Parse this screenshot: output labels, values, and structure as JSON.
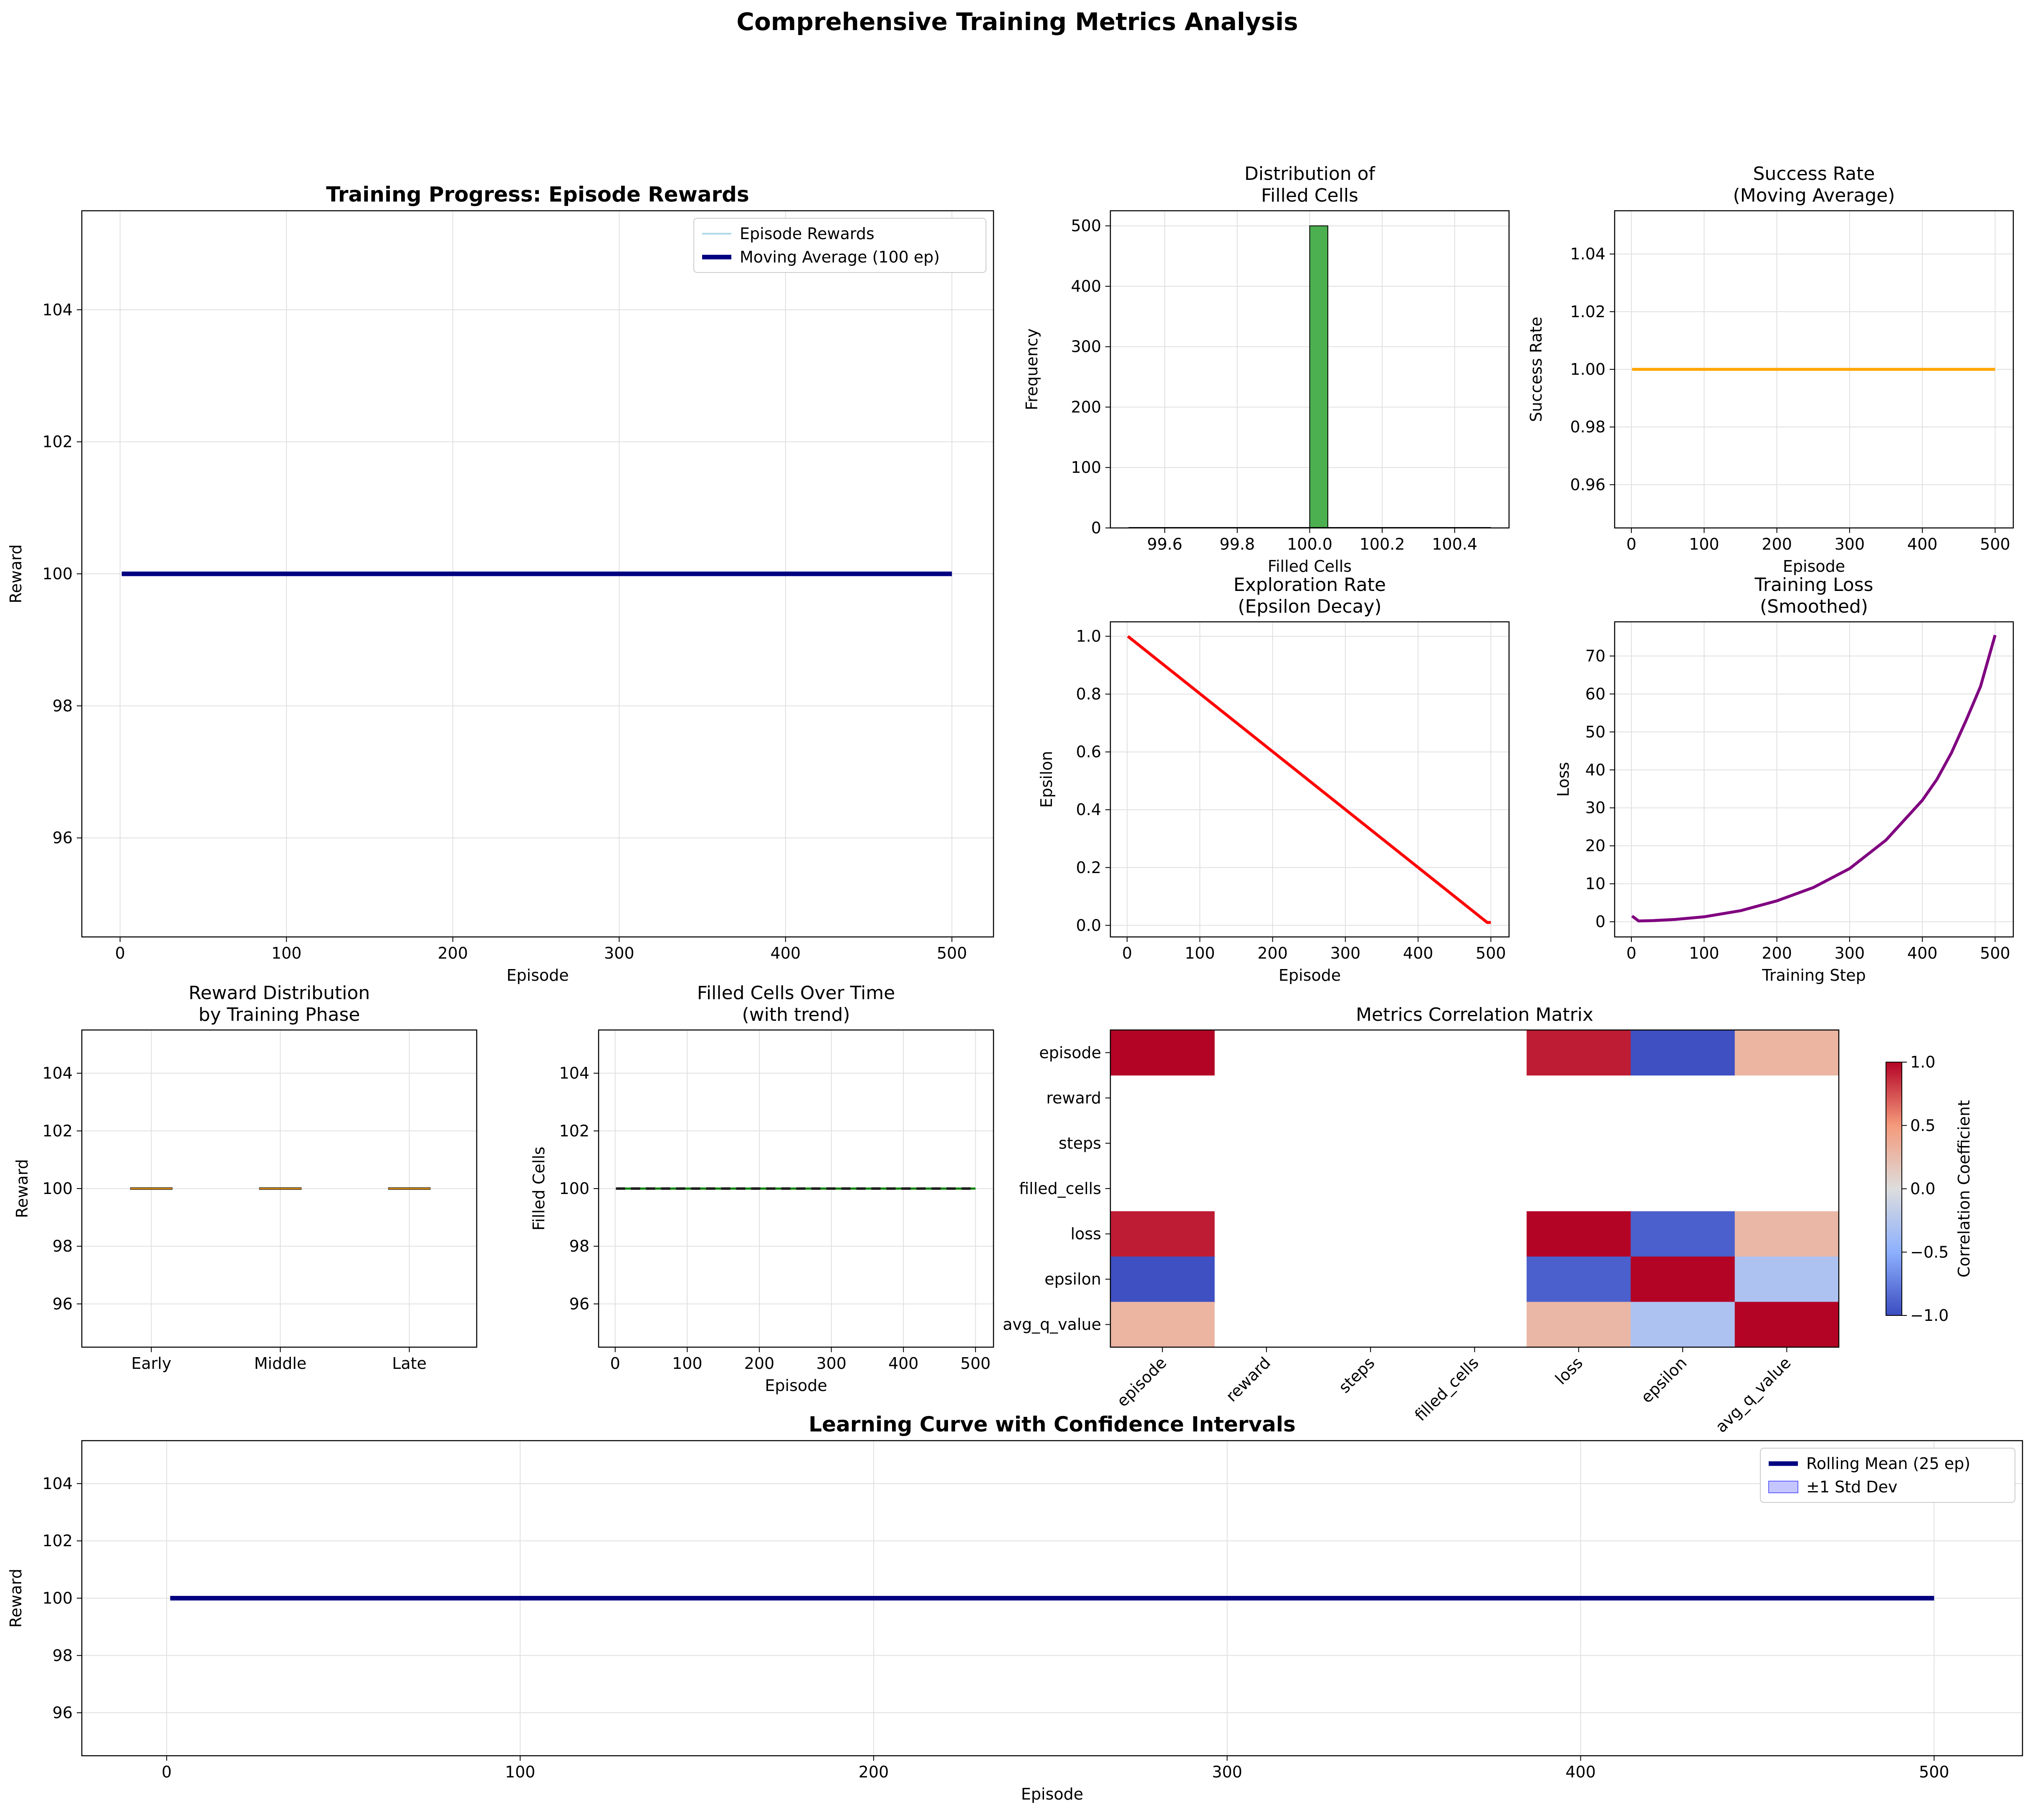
{
  "figure": {
    "suptitle": "Comprehensive Training Metrics Analysis"
  },
  "colors": {
    "episode_rewards": "#add8e6",
    "moving_average": "#000080",
    "histogram": "#4caf50",
    "success_rate": "#ffa500",
    "epsilon": "#ff0000",
    "loss": "#800080",
    "filled_over_time": "#008000",
    "box_median": "#e69500",
    "rolling_mean": "#000080",
    "std_band": "#a0a0ff"
  },
  "chart_data": [
    {
      "id": "rewards",
      "type": "line",
      "title": "Training Progress: Episode Rewards",
      "xlabel": "Episode",
      "ylabel": "Reward",
      "xlim": [
        -23,
        525
      ],
      "ylim": [
        94.5,
        105.5
      ],
      "xticks": [
        0,
        100,
        200,
        300,
        400,
        500
      ],
      "yticks": [
        96,
        98,
        100,
        102,
        104
      ],
      "grid": true,
      "legend": "upper right",
      "series": [
        {
          "name": "Episode Rewards",
          "x": [
            1,
            500
          ],
          "y": [
            100,
            100
          ]
        },
        {
          "name": "Moving Average (100 ep)",
          "x": [
            1,
            500
          ],
          "y": [
            100,
            100
          ]
        }
      ]
    },
    {
      "id": "filled_hist",
      "type": "bar",
      "title": "Distribution of\nFilled Cells",
      "xlabel": "Filled Cells",
      "ylabel": "Frequency",
      "xlim": [
        99.45,
        100.55
      ],
      "ylim": [
        0,
        525
      ],
      "xticks": [
        99.6,
        99.8,
        100.0,
        100.2,
        100.4
      ],
      "yticks": [
        0,
        100,
        200,
        300,
        400,
        500
      ],
      "grid": true,
      "bins": [
        {
          "x0": 100.0,
          "x1": 100.05,
          "count": 500
        }
      ]
    },
    {
      "id": "success",
      "type": "line",
      "title": "Success Rate\n(Moving Average)",
      "xlabel": "Episode",
      "ylabel": "Success Rate",
      "xlim": [
        -23,
        525
      ],
      "ylim": [
        0.945,
        1.055
      ],
      "xticks": [
        0,
        100,
        200,
        300,
        400,
        500
      ],
      "yticks": [
        0.96,
        0.98,
        1.0,
        1.02,
        1.04
      ],
      "grid": true,
      "series": [
        {
          "x": [
            1,
            500
          ],
          "y": [
            1.0,
            1.0
          ]
        }
      ]
    },
    {
      "id": "epsilon",
      "type": "line",
      "title": "Exploration Rate\n(Epsilon Decay)",
      "xlabel": "Episode",
      "ylabel": "Epsilon",
      "xlim": [
        -23,
        525
      ],
      "ylim": [
        -0.04,
        1.05
      ],
      "xticks": [
        0,
        100,
        200,
        300,
        400,
        500
      ],
      "yticks": [
        0.0,
        0.2,
        0.4,
        0.6,
        0.8,
        1.0
      ],
      "grid": true,
      "series": [
        {
          "x": [
            1,
            495,
            500
          ],
          "y": [
            1.0,
            0.01,
            0.01
          ]
        }
      ]
    },
    {
      "id": "loss",
      "type": "line",
      "title": "Training Loss\n(Smoothed)",
      "xlabel": "Training Step",
      "ylabel": "Loss",
      "xlim": [
        -23,
        525
      ],
      "ylim": [
        -4,
        79
      ],
      "xticks": [
        0,
        100,
        200,
        300,
        400,
        500
      ],
      "yticks": [
        0,
        10,
        20,
        30,
        40,
        50,
        60,
        70
      ],
      "grid": true,
      "series": [
        {
          "x": [
            1,
            10,
            30,
            60,
            100,
            150,
            200,
            250,
            300,
            350,
            400,
            420,
            440,
            460,
            480,
            500
          ],
          "y": [
            1.5,
            0.2,
            0.3,
            0.6,
            1.3,
            2.9,
            5.5,
            9.0,
            14.0,
            21.5,
            32.0,
            37.5,
            44.5,
            53.0,
            62.0,
            75.5
          ]
        }
      ]
    },
    {
      "id": "box",
      "type": "box",
      "title": "Reward Distribution\nby Training Phase",
      "ylabel": "Reward",
      "categories": [
        "Early",
        "Middle",
        "Late"
      ],
      "ylim": [
        94.5,
        105.5
      ],
      "yticks": [
        96,
        98,
        100,
        102,
        104
      ],
      "grid": true,
      "boxes": [
        {
          "q1": 100,
          "median": 100,
          "q3": 100
        },
        {
          "q1": 100,
          "median": 100,
          "q3": 100
        },
        {
          "q1": 100,
          "median": 100,
          "q3": 100
        }
      ]
    },
    {
      "id": "filled_time",
      "type": "line",
      "title": "Filled Cells Over Time\n(with trend)",
      "xlabel": "Episode",
      "ylabel": "Filled Cells",
      "xlim": [
        -23,
        525
      ],
      "ylim": [
        94.5,
        105.5
      ],
      "xticks": [
        0,
        100,
        200,
        300,
        400,
        500
      ],
      "yticks": [
        96,
        98,
        100,
        102,
        104
      ],
      "grid": true,
      "series": [
        {
          "x": [
            1,
            500
          ],
          "y": [
            100,
            100
          ]
        },
        {
          "x": [
            1,
            500
          ],
          "y": [
            100,
            100
          ],
          "style": "dashed"
        }
      ]
    },
    {
      "id": "corr",
      "type": "heatmap",
      "title": "Metrics Correlation Matrix",
      "labels": [
        "episode",
        "reward",
        "steps",
        "filled_cells",
        "loss",
        "epsilon",
        "avg_q_value"
      ],
      "colorbar_label": "Correlation Coefficient",
      "colorbar_range": [
        -1,
        1
      ],
      "colorbar_ticks": [
        -1.0,
        -0.5,
        0.0,
        0.5,
        1.0
      ],
      "matrix": [
        [
          1.0,
          null,
          null,
          null,
          0.92,
          -0.98,
          0.3
        ],
        [
          null,
          null,
          null,
          null,
          null,
          null,
          null
        ],
        [
          null,
          null,
          null,
          null,
          null,
          null,
          null
        ],
        [
          null,
          null,
          null,
          null,
          null,
          null,
          null
        ],
        [
          0.92,
          null,
          null,
          null,
          1.0,
          -0.9,
          0.28
        ],
        [
          -0.98,
          null,
          null,
          null,
          -0.9,
          1.0,
          -0.3
        ],
        [
          0.3,
          null,
          null,
          null,
          0.28,
          -0.3,
          1.0
        ]
      ]
    },
    {
      "id": "learning",
      "type": "line",
      "title": "Learning Curve with Confidence Intervals",
      "xlabel": "Episode",
      "ylabel": "Reward",
      "xlim": [
        -24,
        525
      ],
      "ylim": [
        94.5,
        105.5
      ],
      "xticks": [
        0,
        100,
        200,
        300,
        400,
        500
      ],
      "yticks": [
        96,
        98,
        100,
        102,
        104
      ],
      "grid": true,
      "legend": "upper right",
      "series": [
        {
          "name": "Rolling Mean (25 ep)",
          "x": [
            1,
            500
          ],
          "y": [
            100,
            100
          ]
        },
        {
          "name": "±1 Std Dev",
          "type": "band",
          "x": [
            1,
            500
          ],
          "lower": [
            100,
            100
          ],
          "upper": [
            100,
            100
          ]
        }
      ]
    }
  ]
}
